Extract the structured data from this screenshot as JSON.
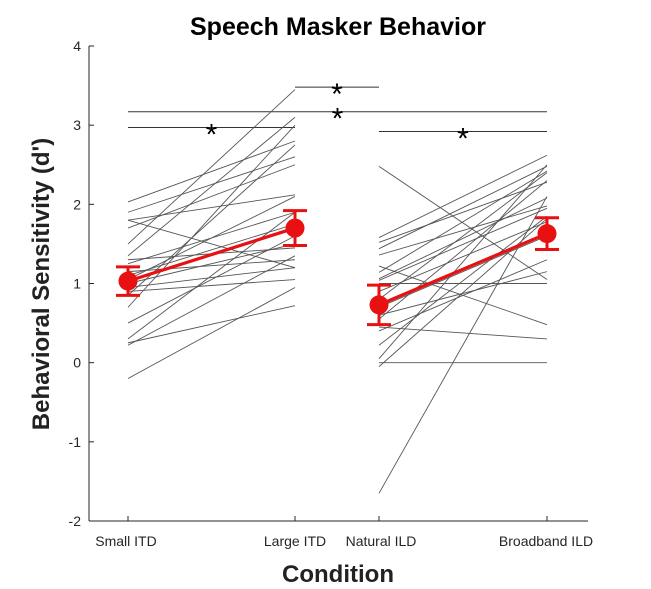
{
  "chart_data": {
    "type": "line",
    "title": "Speech Masker Behavior",
    "xlabel": "Condition",
    "ylabel": "Behavioral Sensitivity (d')",
    "ylim": [
      -2,
      4
    ],
    "yticks": [
      "-2",
      "-1",
      "0",
      "1",
      "2",
      "3",
      "4"
    ],
    "categories": [
      "Small ITD",
      "Large ITD",
      "Natural ILD",
      "Broadband ILD"
    ],
    "colors": {
      "individual": "#555555",
      "mean": "#e81010",
      "axis": "#262626"
    },
    "pairs": [
      {
        "name": "ITD",
        "from": "Small ITD",
        "to": "Large ITD",
        "individual": [
          [
            2.03,
            2.8
          ],
          [
            1.8,
            2.12
          ],
          [
            1.8,
            1.2
          ],
          [
            1.7,
            2.5
          ],
          [
            1.5,
            3.45
          ],
          [
            1.35,
            3.1
          ],
          [
            1.3,
            1.45
          ],
          [
            1.25,
            1.9
          ],
          [
            1.15,
            1.3
          ],
          [
            1.1,
            1.75
          ],
          [
            1.05,
            2.1
          ],
          [
            1.0,
            1.5
          ],
          [
            0.95,
            1.2
          ],
          [
            0.9,
            1.05
          ],
          [
            0.85,
            2.75
          ],
          [
            0.7,
            3.0
          ],
          [
            0.5,
            1.6
          ],
          [
            0.3,
            1.9
          ],
          [
            0.25,
            0.72
          ],
          [
            0.22,
            1.35
          ],
          [
            -0.2,
            0.95
          ],
          [
            1.9,
            2.6
          ]
        ],
        "mean": [
          1.03,
          1.7
        ],
        "error": [
          0.18,
          0.22
        ]
      },
      {
        "name": "ILD",
        "from": "Natural ILD",
        "to": "Broadband ILD",
        "individual": [
          [
            2.48,
            1.05
          ],
          [
            1.58,
            2.62
          ],
          [
            1.52,
            2.28
          ],
          [
            1.44,
            2.48
          ],
          [
            1.36,
            1.98
          ],
          [
            1.22,
            0.48
          ],
          [
            1.14,
            2.42
          ],
          [
            1.06,
            2.08
          ],
          [
            1.04,
            1.95
          ],
          [
            1.0,
            1.0
          ],
          [
            0.9,
            1.78
          ],
          [
            0.8,
            2.4
          ],
          [
            0.7,
            1.6
          ],
          [
            0.55,
            2.3
          ],
          [
            0.45,
            0.3
          ],
          [
            0.4,
            1.3
          ],
          [
            0.22,
            1.85
          ],
          [
            0.05,
            2.5
          ],
          [
            0.0,
            0.0
          ],
          [
            -0.05,
            1.82
          ],
          [
            -1.65,
            2.1
          ],
          [
            0.6,
            1.15
          ]
        ],
        "mean": [
          0.73,
          1.63
        ],
        "error": [
          0.25,
          0.2
        ]
      }
    ],
    "significance": [
      {
        "from": "Large ITD",
        "to": "Natural ILD",
        "y": 3.48,
        "label": "*"
      },
      {
        "from": "Small ITD",
        "to": "Broadband ILD",
        "y": 3.17,
        "label": "*"
      },
      {
        "from": "Small ITD",
        "to": "Large ITD",
        "y": 2.97,
        "label": "*"
      },
      {
        "from": "Natural ILD",
        "to": "Broadband ILD",
        "y": 2.92,
        "label": "*"
      }
    ]
  }
}
